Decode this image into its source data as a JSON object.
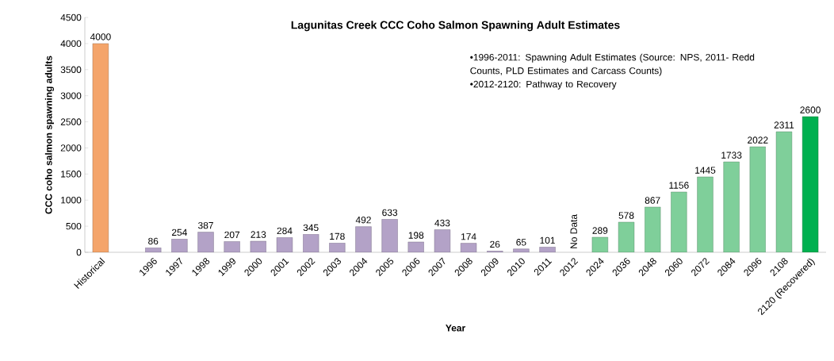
{
  "chart_data": {
    "type": "bar",
    "title": "Lagunitas Creek CCC Coho Salmon Spawning Adult Estimates",
    "xlabel": "Year",
    "ylabel": "CCC coho salmon spawning adults",
    "categories": [
      "Historical",
      null,
      "1996",
      "1997",
      "1998",
      "1999",
      "2000",
      "2001",
      "2002",
      "2003",
      "2004",
      "2005",
      "2006",
      "2007",
      "2008",
      "2009",
      "2010",
      "2011",
      "2012",
      "2024",
      "2036",
      "2048",
      "2060",
      "2072",
      "2084",
      "2096",
      "2108",
      "2120 (Recovered)"
    ],
    "values": [
      4000,
      null,
      86,
      254,
      387,
      207,
      213,
      284,
      345,
      178,
      492,
      633,
      198,
      433,
      174,
      26,
      65,
      101,
      null,
      289,
      578,
      867,
      1156,
      1445,
      1733,
      2022,
      2311,
      2600
    ],
    "value_labels": [
      "4000",
      null,
      "86",
      "254",
      "387",
      "207",
      "213",
      "284",
      "345",
      "178",
      "492",
      "633",
      "198",
      "433",
      "174",
      "26",
      "65",
      "101",
      "No Data",
      "289",
      "578",
      "867",
      "1156",
      "1445",
      "1733",
      "2022",
      "2311",
      "2600"
    ],
    "colors": [
      "#f4a46a",
      null,
      "#b3a2c7",
      "#b3a2c7",
      "#b3a2c7",
      "#b3a2c7",
      "#b3a2c7",
      "#b3a2c7",
      "#b3a2c7",
      "#b3a2c7",
      "#b3a2c7",
      "#b3a2c7",
      "#b3a2c7",
      "#b3a2c7",
      "#b3a2c7",
      "#b3a2c7",
      "#b3a2c7",
      "#b3a2c7",
      null,
      "#7fcf9a",
      "#7fcf9a",
      "#7fcf9a",
      "#7fcf9a",
      "#7fcf9a",
      "#7fcf9a",
      "#7fcf9a",
      "#7fcf9a",
      "#00b050"
    ],
    "ylim": [
      0,
      4500
    ],
    "yticks": [
      0,
      500,
      1000,
      1500,
      2000,
      2500,
      3000,
      3500,
      4000,
      4500
    ],
    "annotations": [
      "•1996-2011: Spawning Adult Estimates (Source: NPS, 2011- Redd Counts, PLD Estimates and Carcass  Counts)",
      "•2012-2120: Pathway to Recovery"
    ],
    "grid": false
  }
}
